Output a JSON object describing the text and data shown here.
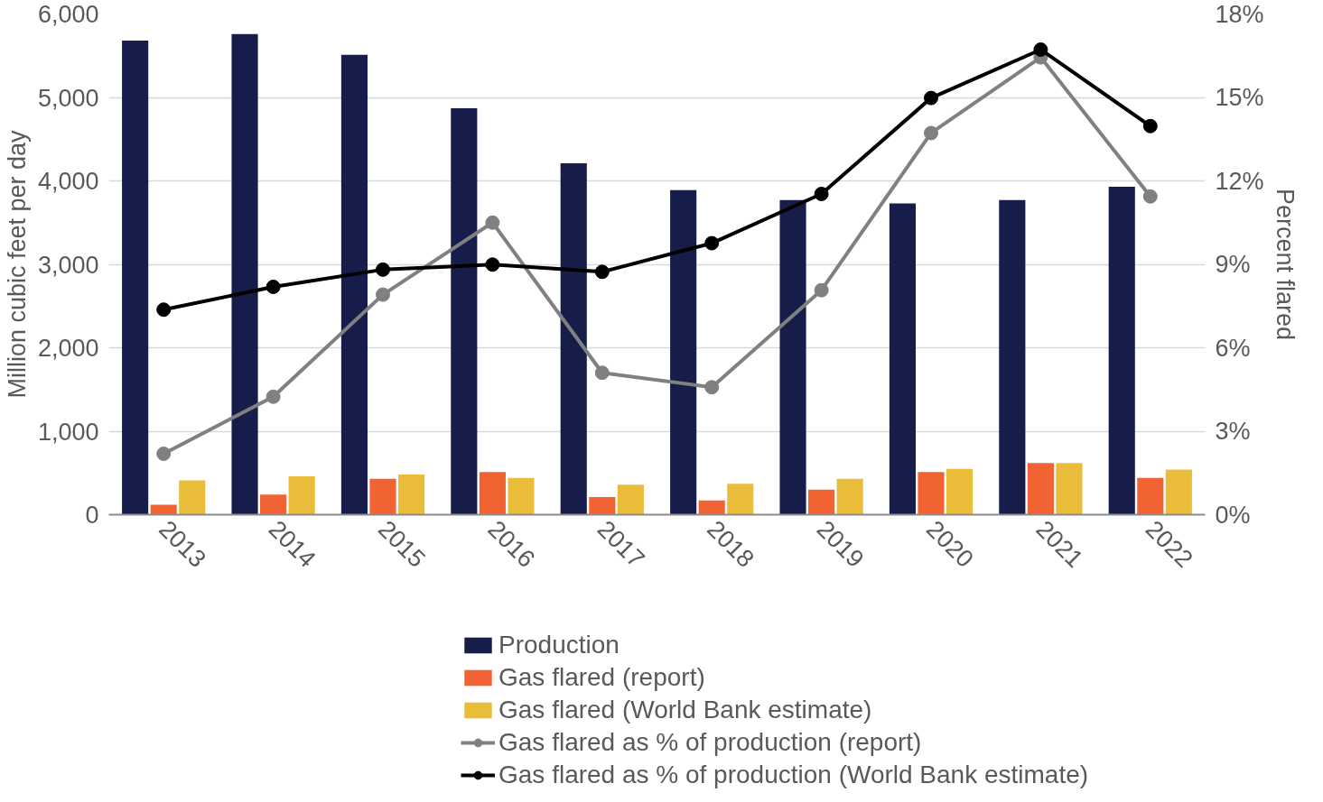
{
  "chart_data": {
    "type": "bar",
    "categories": [
      "2013",
      "2014",
      "2015",
      "2016",
      "2017",
      "2018",
      "2019",
      "2020",
      "2021",
      "2022"
    ],
    "ylabel": "Million cubic feet per day",
    "y2label": "Percent flared",
    "ylim": [
      0,
      6000
    ],
    "yticks": [
      0,
      {
        "value": 1000,
        "label": "1,000"
      },
      {
        "value": 2000,
        "label": "2,000"
      },
      {
        "value": 3000,
        "label": "3,000"
      },
      {
        "value": 4000,
        "label": "4,000"
      },
      {
        "value": 5000,
        "label": "5,000"
      },
      {
        "value": 6000,
        "label": "6,000"
      }
    ],
    "y2lim": [
      0,
      18
    ],
    "y2ticks": [
      {
        "value": 0,
        "label": "0%"
      },
      {
        "value": 3,
        "label": "3%"
      },
      {
        "value": 6,
        "label": "6%"
      },
      {
        "value": 9,
        "label": "9%"
      },
      {
        "value": 12,
        "label": "12%"
      },
      {
        "value": 15,
        "label": "15%"
      },
      {
        "value": 18,
        "label": "18%"
      }
    ],
    "grid": "y",
    "legend": "bottom",
    "marker": "circle",
    "line_style": "solid",
    "series": [
      {
        "name": "Production",
        "color": "#161d4b",
        "values": [
          5680,
          5760,
          5510,
          4870,
          4210,
          3890,
          3770,
          3730,
          3770,
          3930
        ]
      },
      {
        "name": "Gas flared (report)",
        "color": "#f26333",
        "values": [
          120,
          240,
          430,
          510,
          210,
          170,
          300,
          510,
          620,
          440
        ]
      },
      {
        "name": "Gas flared (World Bank estimate)",
        "color": "#e9bd3a",
        "values": [
          410,
          460,
          480,
          440,
          360,
          370,
          430,
          550,
          620,
          540
        ]
      },
      {
        "name": "Gas flared as % of production (report)",
        "type": "line",
        "axis": "y2",
        "color": "#808080",
        "values": [
          2.19,
          4.24,
          7.91,
          10.5,
          5.1,
          4.58,
          8.07,
          13.72,
          16.44,
          11.44
        ]
      },
      {
        "name": "Gas flared as % of production (World Bank estimate)",
        "type": "line",
        "axis": "y2",
        "color": "#000000",
        "values": [
          7.37,
          8.19,
          8.81,
          8.99,
          8.73,
          9.76,
          11.53,
          14.98,
          16.72,
          13.97
        ]
      }
    ]
  }
}
